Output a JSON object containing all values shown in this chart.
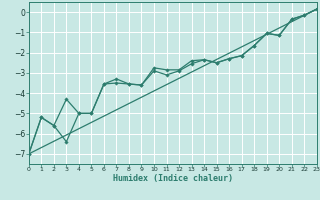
{
  "xlabel": "Humidex (Indice chaleur)",
  "xlim": [
    0,
    23
  ],
  "ylim": [
    -7.5,
    0.5
  ],
  "xticks": [
    0,
    1,
    2,
    3,
    4,
    5,
    6,
    7,
    8,
    9,
    10,
    11,
    12,
    13,
    14,
    15,
    16,
    17,
    18,
    19,
    20,
    21,
    22,
    23
  ],
  "yticks": [
    0,
    -1,
    -2,
    -3,
    -4,
    -5,
    -6,
    -7
  ],
  "bg_color": "#c8e8e4",
  "grid_color": "#ffffff",
  "line_color": "#2d7d6e",
  "curve1_x": [
    0,
    1,
    2,
    3,
    4,
    5,
    6,
    7,
    8,
    9,
    10,
    11,
    12,
    13,
    14,
    15,
    16,
    17,
    18,
    19,
    20,
    21,
    22,
    23
  ],
  "curve1_y": [
    -7.0,
    -5.2,
    -5.6,
    -4.3,
    -5.0,
    -5.0,
    -3.55,
    -3.3,
    -3.55,
    -3.6,
    -2.9,
    -3.1,
    -2.9,
    -2.55,
    -2.35,
    -2.5,
    -2.3,
    -2.15,
    -1.65,
    -1.05,
    -1.15,
    -0.35,
    -0.15,
    0.15
  ],
  "curve2_x": [
    0,
    1,
    2,
    3,
    4,
    5,
    6,
    7,
    8,
    9,
    10,
    11,
    12,
    13,
    14,
    15,
    16,
    17,
    18,
    19,
    20,
    21,
    22,
    23
  ],
  "curve2_y": [
    -7.0,
    -5.2,
    -5.6,
    -6.4,
    -5.0,
    -5.0,
    -3.55,
    -3.5,
    -3.55,
    -3.6,
    -2.75,
    -2.85,
    -2.85,
    -2.4,
    -2.35,
    -2.5,
    -2.3,
    -2.15,
    -1.65,
    -1.05,
    -1.15,
    -0.35,
    -0.15,
    0.15
  ],
  "line3_x": [
    0,
    23
  ],
  "line3_y": [
    -7.0,
    0.15
  ]
}
